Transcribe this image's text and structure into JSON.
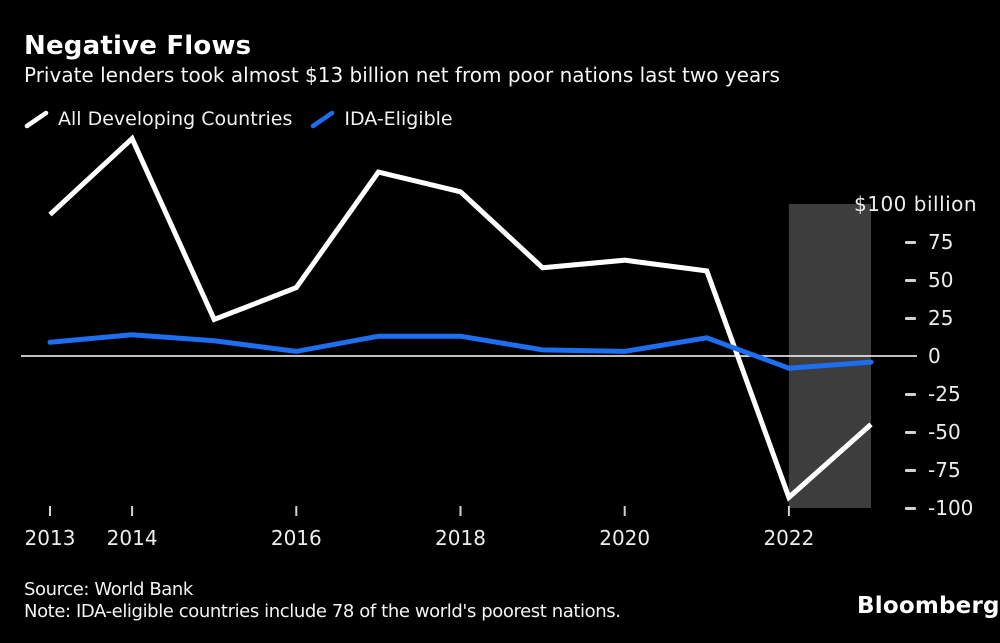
{
  "header": {
    "title": "Negative Flows",
    "subtitle": "Private lenders took almost $13 billion net from poor nations last two years"
  },
  "legend": {
    "items": [
      {
        "label": "All Developing Countries",
        "color": "#ffffff",
        "marker": "slash-icon"
      },
      {
        "label": "IDA-Eligible",
        "color": "#1e6ef0",
        "marker": "slash-icon"
      }
    ]
  },
  "chart_data": {
    "type": "line",
    "x": [
      2013,
      2014,
      2015,
      2016,
      2017,
      2018,
      2019,
      2020,
      2021,
      2022,
      2023
    ],
    "series": [
      {
        "name": "All Developing Countries",
        "color": "#ffffff",
        "values": [
          93,
          143,
          24,
          45,
          121,
          108,
          58,
          63,
          56,
          -93,
          -45
        ]
      },
      {
        "name": "IDA-Eligible",
        "color": "#1e6ef0",
        "values": [
          9,
          14,
          10,
          3,
          13,
          13,
          4,
          3,
          12,
          -8,
          -4
        ]
      }
    ],
    "ylabel": "$100 billion",
    "xlabel": "",
    "ylim": [
      -100,
      100
    ],
    "grid": false,
    "zero_line": true,
    "legend_position": "top-left",
    "y_ticks": [
      {
        "value": 100,
        "label": "$100 billion",
        "unit": true
      },
      {
        "value": 75,
        "label": "75"
      },
      {
        "value": 50,
        "label": "50"
      },
      {
        "value": 25,
        "label": "25"
      },
      {
        "value": 0,
        "label": "0"
      },
      {
        "value": -25,
        "label": "-25"
      },
      {
        "value": -50,
        "label": "-50"
      },
      {
        "value": -75,
        "label": "-75"
      },
      {
        "value": -100,
        "label": "-100"
      }
    ],
    "x_ticks": [
      {
        "value": 2013,
        "label": "2013"
      },
      {
        "value": 2014,
        "label": "2014"
      },
      {
        "value": 2016,
        "label": "2016"
      },
      {
        "value": 2018,
        "label": "2018"
      },
      {
        "value": 2020,
        "label": "2020"
      },
      {
        "value": 2022,
        "label": "2022"
      }
    ],
    "highlight_band": {
      "from": 2022,
      "to": 2023,
      "color": "#3d3d3d"
    }
  },
  "footer": {
    "source": "Source: World Bank",
    "note": "Note: IDA-eligible countries include 78 of the world's poorest nations.",
    "brand": "Bloomberg"
  }
}
